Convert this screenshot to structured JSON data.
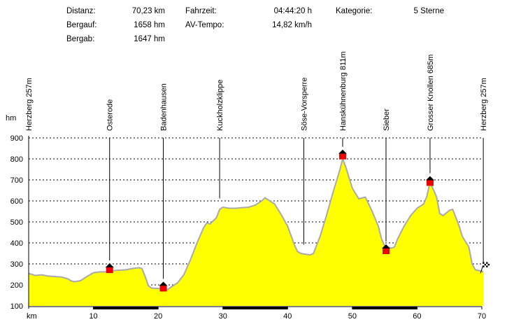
{
  "stats": {
    "distance_label": "Distanz:",
    "distance_value": "70,23 km",
    "ascent_label": "Bergauf:",
    "ascent_value": "1658 hm",
    "descent_label": "Bergab:",
    "descent_value": "1647 hm",
    "time_label": "Fahrzeit:",
    "time_value": "04:44:20 h",
    "speed_label": "AV-Tempo:",
    "speed_value": "14,82 km/h",
    "category_label": "Kategorie:",
    "category_value": "5 Sterne"
  },
  "chart_data": {
    "type": "area",
    "xlabel": "km",
    "ylabel": "hm",
    "xlim": [
      0,
      70
    ],
    "ylim": [
      100,
      900
    ],
    "x_ticks": [
      "10",
      "20",
      "30",
      "40",
      "50",
      "60",
      "70"
    ],
    "y_ticks": [
      "100",
      "200",
      "300",
      "400",
      "500",
      "600",
      "700",
      "800",
      "900"
    ],
    "grid": true,
    "fill_color": "#ffff00",
    "line_color": "#aaaaaa",
    "profile": [
      [
        0,
        255
      ],
      [
        0.5,
        250
      ],
      [
        1,
        245
      ],
      [
        2,
        248
      ],
      [
        3,
        242
      ],
      [
        4,
        240
      ],
      [
        5,
        238
      ],
      [
        6,
        230
      ],
      [
        6.5,
        220
      ],
      [
        7,
        215
      ],
      [
        8,
        220
      ],
      [
        9,
        240
      ],
      [
        10,
        258
      ],
      [
        11,
        262
      ],
      [
        12,
        262
      ],
      [
        13,
        268
      ],
      [
        14,
        270
      ],
      [
        15,
        272
      ],
      [
        16,
        278
      ],
      [
        17,
        282
      ],
      [
        17.5,
        278
      ],
      [
        18,
        240
      ],
      [
        18.5,
        195
      ],
      [
        19,
        185
      ],
      [
        20,
        183
      ],
      [
        21,
        180
      ],
      [
        21.5,
        178
      ],
      [
        22,
        190
      ],
      [
        23,
        210
      ],
      [
        24,
        250
      ],
      [
        25,
        320
      ],
      [
        26,
        400
      ],
      [
        27,
        470
      ],
      [
        27.5,
        495
      ],
      [
        28,
        490
      ],
      [
        29,
        520
      ],
      [
        29.5,
        560
      ],
      [
        30,
        570
      ],
      [
        31,
        565
      ],
      [
        32,
        565
      ],
      [
        33,
        568
      ],
      [
        34,
        570
      ],
      [
        35,
        580
      ],
      [
        36,
        600
      ],
      [
        36.5,
        615
      ],
      [
        37,
        605
      ],
      [
        38,
        585
      ],
      [
        39,
        535
      ],
      [
        40,
        480
      ],
      [
        41,
        395
      ],
      [
        41.5,
        360
      ],
      [
        42,
        350
      ],
      [
        43,
        345
      ],
      [
        43.5,
        343
      ],
      [
        44,
        350
      ],
      [
        45,
        430
      ],
      [
        46,
        530
      ],
      [
        47,
        640
      ],
      [
        48,
        740
      ],
      [
        48.5,
        800
      ],
      [
        49,
        760
      ],
      [
        50,
        660
      ],
      [
        51,
        610
      ],
      [
        52,
        618
      ],
      [
        53,
        555
      ],
      [
        54,
        480
      ],
      [
        54.5,
        420
      ],
      [
        55,
        385
      ],
      [
        56,
        375
      ],
      [
        56.5,
        380
      ],
      [
        57,
        420
      ],
      [
        58,
        480
      ],
      [
        59,
        530
      ],
      [
        60,
        565
      ],
      [
        61,
        585
      ],
      [
        61.5,
        620
      ],
      [
        62,
        690
      ],
      [
        63,
        620
      ],
      [
        63.5,
        540
      ],
      [
        64,
        530
      ],
      [
        65,
        555
      ],
      [
        65.5,
        560
      ],
      [
        66,
        520
      ],
      [
        66.5,
        480
      ],
      [
        67,
        430
      ],
      [
        68,
        380
      ],
      [
        68.5,
        300
      ],
      [
        69,
        272
      ],
      [
        70,
        265
      ],
      [
        70.23,
        262
      ]
    ],
    "waypoints": [
      {
        "name": "Herzberg 257m",
        "km": 0,
        "alt": 257,
        "marker": "none"
      },
      {
        "name": "Osterode",
        "km": 12.5,
        "alt": 270,
        "marker": "hut"
      },
      {
        "name": "Badenhausen",
        "km": 20.8,
        "alt": 182,
        "marker": "hut"
      },
      {
        "name": "Kuckholzklippe",
        "km": 29.5,
        "alt": 565,
        "marker": "none"
      },
      {
        "name": "Söse-Vorsperre",
        "km": 42.5,
        "alt": 345,
        "marker": "none"
      },
      {
        "name": "Hanskühnenburg 811m",
        "km": 48.5,
        "alt": 811,
        "marker": "hut"
      },
      {
        "name": "Sieber",
        "km": 55.2,
        "alt": 360,
        "marker": "hut"
      },
      {
        "name": "Grosser Knollen 685m",
        "km": 62,
        "alt": 685,
        "marker": "hut"
      },
      {
        "name": "Herzberg 257m",
        "km": 70.23,
        "alt": 262,
        "marker": "finish-flag"
      }
    ]
  }
}
